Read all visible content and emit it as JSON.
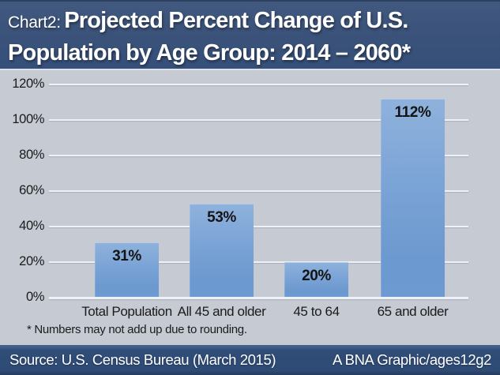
{
  "header": {
    "chart_label": "Chart2:",
    "title_line1": "Projected Percent Change of U.S.",
    "title_line2": "Population by Age Group: 2014 – 2060*"
  },
  "chart_data": {
    "type": "bar",
    "categories": [
      "Total Population",
      "All 45 and older",
      "45 to 64",
      "65 and older"
    ],
    "values": [
      31,
      53,
      20,
      112
    ],
    "value_labels": [
      "31%",
      "53%",
      "20%",
      "112%"
    ],
    "title": "Projected Percent Change of U.S. Population by Age Group: 2014 – 2060*",
    "xlabel": "",
    "ylabel": "",
    "ylim": [
      0,
      120
    ],
    "yticks": [
      0,
      20,
      40,
      60,
      80,
      100,
      120
    ],
    "ytick_labels": [
      "0%",
      "20%",
      "40%",
      "60%",
      "80%",
      "100%",
      "120%"
    ],
    "grid": true,
    "legend": "none"
  },
  "footnote": "* Numbers may not add up due to rounding.",
  "footer": {
    "source": "Source: U.S. Census Bureau (March 2015)",
    "credit": "A BNA Graphic/ages12g2"
  },
  "colors": {
    "header_bg": "#3a5279",
    "chart_bg": "#c5cad3",
    "gridline": "#eef1f5",
    "bar_fill": "#7aa3d6",
    "footer_bg": "#2e4b76",
    "text_dark": "#1b1b1b",
    "text_light": "#ffffff"
  }
}
